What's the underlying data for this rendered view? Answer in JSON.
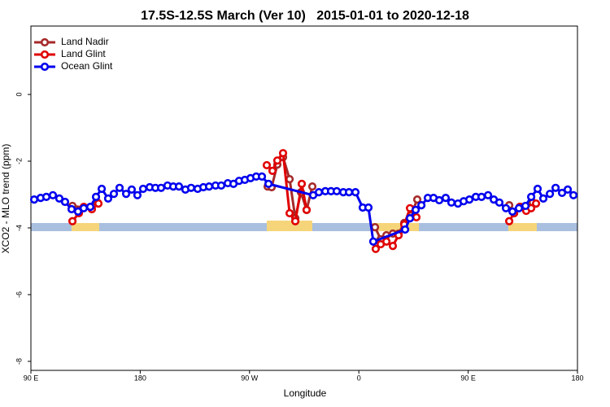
{
  "chart_data": {
    "type": "line",
    "title": "17.5S-12.5S March (Ver 10)   2015-01-01 to 2020-12-18",
    "xlabel": "Longitude",
    "ylabel": "XCO2 - MLO trend (ppm)",
    "xlim": [
      90,
      540
    ],
    "ylim": [
      -8.27,
      2.05
    ],
    "xticks": [
      {
        "value": 90,
        "label": "90 E"
      },
      {
        "value": 180,
        "label": "180"
      },
      {
        "value": 270,
        "label": "90 W"
      },
      {
        "value": 360,
        "label": "0"
      },
      {
        "value": 450,
        "label": "90 E"
      },
      {
        "value": 540,
        "label": "180"
      }
    ],
    "yticks": [
      0,
      -2,
      -4,
      -6,
      -8
    ],
    "legend": "top-left",
    "series": [
      {
        "name": "Land Nadir",
        "color": "#a52a2a",
        "x": [
          124.2,
          133.5,
          144.9,
          200,
          284.9,
          288.2,
          292.9,
          297.6,
          303.0,
          307.7,
          312.3,
          317.0,
          321.7,
          440,
          373.3,
          378.0,
          382.7,
          388.0,
          392.7,
          397.4,
          402.7,
          408.1,
          470,
          483.8,
          487.8,
          493.2,
          498.5,
          503.2
        ],
        "values": [
          -3.34,
          -3.39,
          -3.24,
          null,
          -2.76,
          -2.78,
          -2.1,
          -1.88,
          -2.54,
          -3.71,
          -2.93,
          -3.46,
          -2.76,
          null,
          -3.98,
          -4.34,
          -4.22,
          -4.17,
          -4.17,
          -3.85,
          -3.63,
          -3.15,
          null,
          -3.32,
          -3.56,
          -3.37,
          -3.41,
          -3.24
        ]
      },
      {
        "name": "Land Glint",
        "color": "#e00000",
        "x": [
          124.2,
          129.5,
          133.5,
          140.2,
          145.6,
          200,
          284.2,
          288.9,
          292.9,
          297.6,
          303.0,
          307.7,
          313.0,
          317.0,
          340,
          373.9,
          378.0,
          382.7,
          388.0,
          392.7,
          397.4,
          402.1,
          407.4,
          470,
          483.8,
          487.8,
          492.5,
          497.8,
          501.9,
          505.9
        ],
        "values": [
          -3.8,
          -3.56,
          -3.37,
          -3.44,
          -3.27,
          null,
          -2.12,
          -2.29,
          -1.98,
          -1.76,
          -3.56,
          -3.8,
          -2.68,
          -3.46,
          null,
          -4.63,
          -4.49,
          -4.41,
          -4.54,
          -4.22,
          -3.9,
          -3.41,
          -3.68,
          null,
          -3.8,
          -3.56,
          -3.37,
          -3.49,
          -3.41,
          -3.27
        ]
      },
      {
        "name": "Ocean Glint",
        "color": "#0000ee",
        "x": [
          92.7,
          98.0,
          102.7,
          108.1,
          113.4,
          118.1,
          123.5,
          128.8,
          133.5,
          138.9,
          143.6,
          148.3,
          153.6,
          158.3,
          163.0,
          168.4,
          173.0,
          177.7,
          182.4,
          187.8,
          192.5,
          197.2,
          202.5,
          207.2,
          211.9,
          217.2,
          221.9,
          227.3,
          232.0,
          236.7,
          242.0,
          246.7,
          252.1,
          256.8,
          261.4,
          266.1,
          270.8,
          275.5,
          280.2,
          285.6,
          322.4,
          327.1,
          332.4,
          337.1,
          341.8,
          347.2,
          351.9,
          357.2,
          363.2,
          367.9,
          371.9,
          398.1,
          402.1,
          406.8,
          411.5,
          416.8,
          421.5,
          426.2,
          431.5,
          436.2,
          441.6,
          446.3,
          451.0,
          456.3,
          461.0,
          466.4,
          471.1,
          475.7,
          481.1,
          486.5,
          491.8,
          497.2,
          501.9,
          507.2,
          511.9,
          517.3,
          522.0,
          527.3,
          532.0,
          536.7
        ],
        "values": [
          -3.15,
          -3.1,
          -3.07,
          -3.02,
          -3.12,
          -3.22,
          -3.44,
          -3.51,
          -3.41,
          -3.37,
          -3.07,
          -2.83,
          -3.12,
          -2.98,
          -2.8,
          -2.98,
          -2.85,
          -3.02,
          -2.83,
          -2.78,
          -2.8,
          -2.8,
          -2.73,
          -2.76,
          -2.76,
          -2.85,
          -2.8,
          -2.83,
          -2.78,
          -2.76,
          -2.73,
          -2.73,
          -2.66,
          -2.68,
          -2.59,
          -2.56,
          -2.51,
          -2.46,
          -2.46,
          -2.68,
          -3.02,
          -2.93,
          -2.9,
          -2.9,
          -2.9,
          -2.93,
          -2.93,
          -2.93,
          -3.39,
          -3.39,
          -4.41,
          -4.05,
          -3.71,
          -3.46,
          -3.32,
          -3.1,
          -3.1,
          -3.17,
          -3.1,
          -3.24,
          -3.27,
          -3.2,
          -3.15,
          -3.07,
          -3.07,
          -3.02,
          -3.15,
          -3.24,
          -3.41,
          -3.51,
          -3.41,
          -3.34,
          -3.07,
          -2.83,
          -3.12,
          -2.98,
          -2.8,
          -2.95,
          -2.85,
          -3.02
        ]
      }
    ]
  }
}
